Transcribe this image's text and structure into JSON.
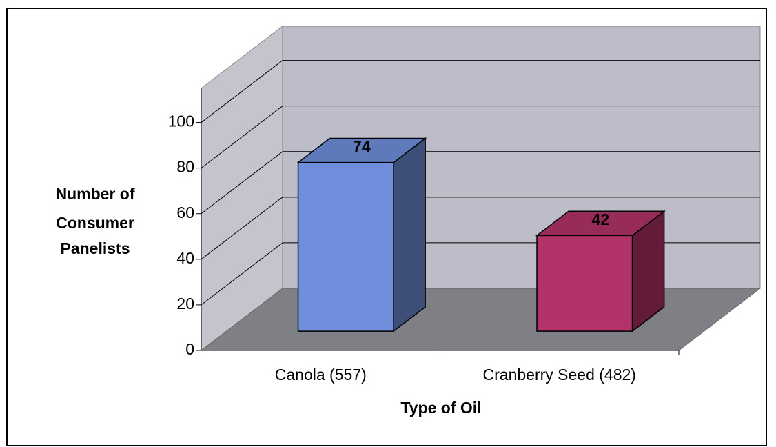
{
  "chart_data": {
    "type": "bar",
    "xlabel": "Type of Oil",
    "ylabel": [
      "Number of",
      "Consumer",
      "Panelists"
    ],
    "categories": [
      "Canola (557)",
      "Cranberry Seed (482)"
    ],
    "values": [
      74,
      42
    ],
    "colors": [
      "#6f8fdc",
      "#b23369"
    ],
    "ylim": [
      0,
      115
    ],
    "yticks": [
      0,
      20,
      40,
      60,
      80,
      100
    ],
    "grid": true
  }
}
